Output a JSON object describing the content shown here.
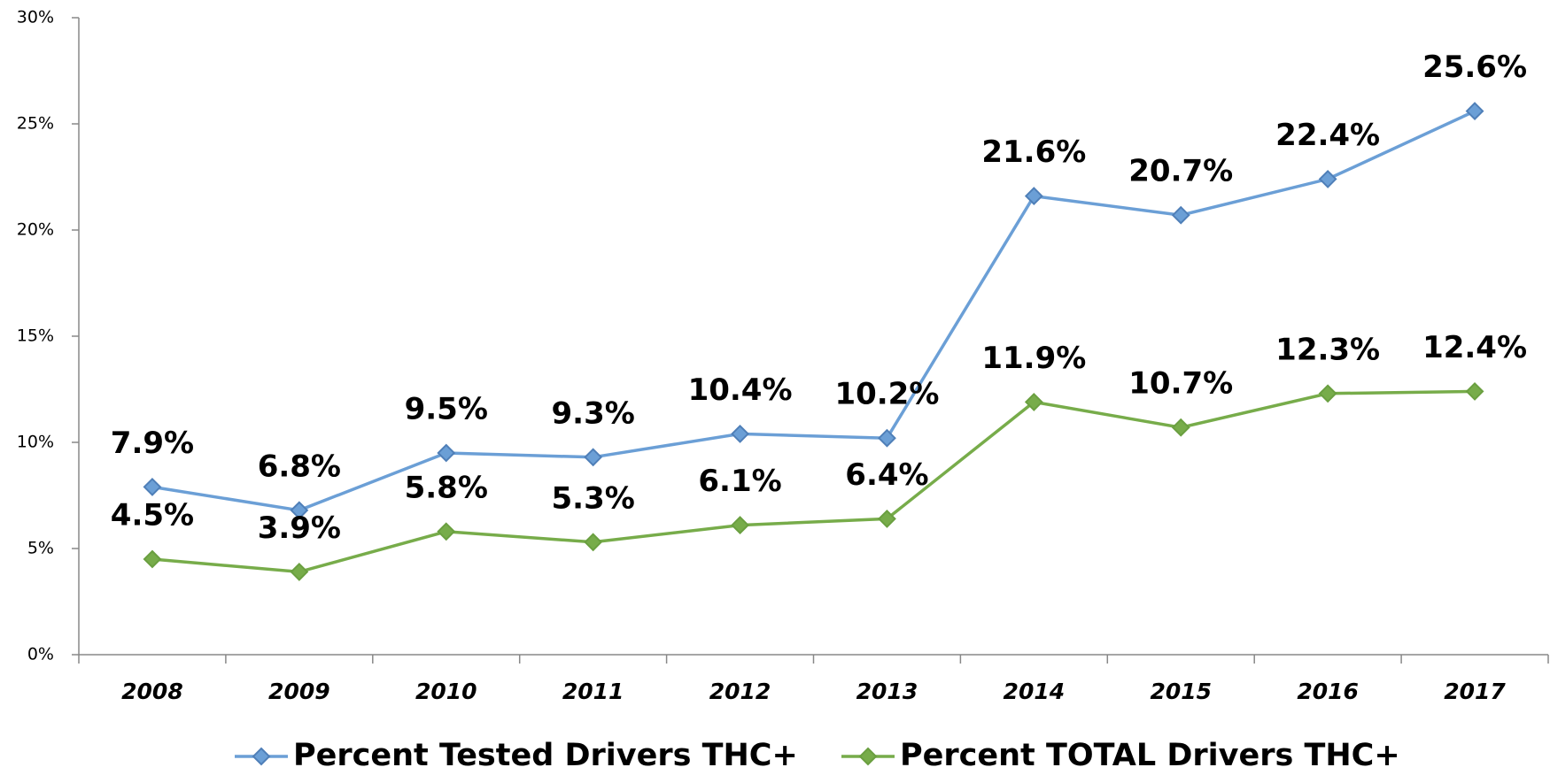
{
  "chart_data": {
    "type": "line",
    "categories": [
      "2008",
      "2009",
      "2010",
      "2011",
      "2012",
      "2013",
      "2014",
      "2015",
      "2016",
      "2017"
    ],
    "series": [
      {
        "name": "Percent Tested Drivers THC+",
        "color": "#6b9fd6",
        "marker_color": "#4f7fb8",
        "values": [
          7.9,
          6.8,
          9.5,
          9.3,
          10.4,
          10.2,
          21.6,
          20.7,
          22.4,
          25.6
        ],
        "value_labels": [
          "7.9%",
          "6.8%",
          "9.5%",
          "9.3%",
          "10.4%",
          "10.2%",
          "21.6%",
          "20.7%",
          "22.4%",
          "25.6%"
        ]
      },
      {
        "name": "Percent TOTAL Drivers THC+",
        "color": "#77ac4a",
        "marker_color": "#6a9f40",
        "values": [
          4.5,
          3.9,
          5.8,
          5.3,
          6.1,
          6.4,
          11.9,
          10.7,
          12.3,
          12.4
        ],
        "value_labels": [
          "4.5%",
          "3.9%",
          "5.8%",
          "5.3%",
          "6.1%",
          "6.4%",
          "11.9%",
          "10.7%",
          "12.3%",
          "12.4%"
        ]
      }
    ],
    "ylim": [
      0,
      30
    ],
    "yticks": [
      {
        "value": 0,
        "label": "0%"
      },
      {
        "value": 5,
        "label": "5%"
      },
      {
        "value": 10,
        "label": "10%"
      },
      {
        "value": 15,
        "label": "15%"
      },
      {
        "value": 20,
        "label": "20%"
      },
      {
        "value": 25,
        "label": "25%"
      },
      {
        "value": 30,
        "label": "30%"
      }
    ],
    "grid": false,
    "legend": "bottom"
  }
}
